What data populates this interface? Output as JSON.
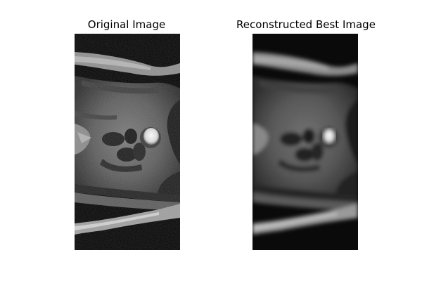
{
  "figure": {
    "panels": [
      {
        "title": "Original Image"
      },
      {
        "title": "Reconstructed Best Image"
      }
    ]
  }
}
